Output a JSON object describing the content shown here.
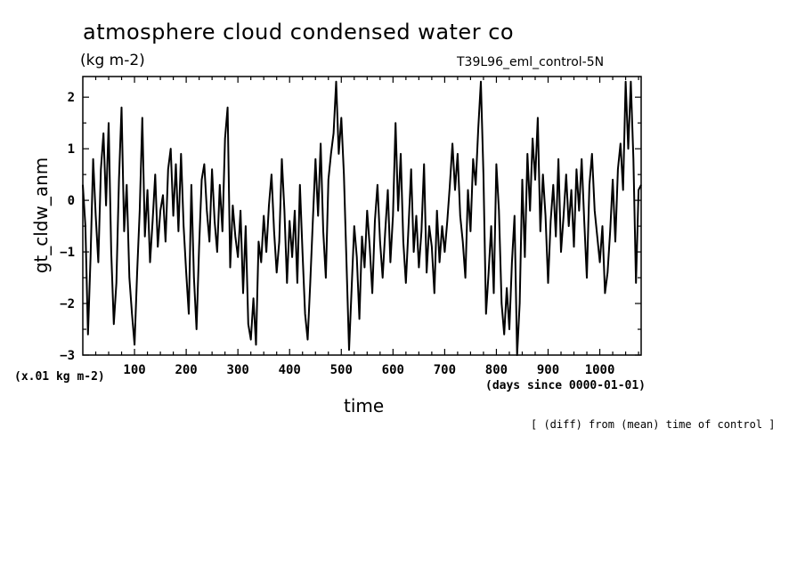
{
  "header": {
    "title": "atmosphere cloud condensed water co",
    "units": "(kg m-2)",
    "run": "T39L96_eml_control-5N"
  },
  "footer": {
    "yscale": "(x.01 kg m-2)",
    "xunits": "(days since 0000-01-01)",
    "xlabel": "time",
    "note": "[ (diff) from (mean) time of control ]"
  },
  "chart_data": {
    "type": "line",
    "title": "atmosphere cloud condensed water co",
    "xlabel": "time",
    "ylabel": "gt_cldw_anm",
    "xlim": [
      0,
      1080
    ],
    "ylim": [
      -3,
      2.4
    ],
    "x_ticks": [
      100,
      200,
      300,
      400,
      500,
      600,
      700,
      800,
      900,
      1000
    ],
    "y_ticks": [
      -3,
      -2,
      -1,
      0,
      1,
      2
    ],
    "grid": false,
    "series": [
      {
        "values": [
          [
            0,
            0.3
          ],
          [
            5,
            -0.5
          ],
          [
            10,
            -2.6
          ],
          [
            15,
            -1.1
          ],
          [
            20,
            0.8
          ],
          [
            25,
            -0.3
          ],
          [
            30,
            -1.2
          ],
          [
            35,
            0.6
          ],
          [
            40,
            1.3
          ],
          [
            45,
            -0.1
          ],
          [
            50,
            1.5
          ],
          [
            55,
            -1.0
          ],
          [
            60,
            -2.4
          ],
          [
            65,
            -1.6
          ],
          [
            70,
            0.4
          ],
          [
            75,
            1.8
          ],
          [
            80,
            -0.6
          ],
          [
            85,
            0.3
          ],
          [
            90,
            -1.5
          ],
          [
            95,
            -2.2
          ],
          [
            100,
            -2.8
          ],
          [
            105,
            -1.4
          ],
          [
            110,
            -0.2
          ],
          [
            115,
            1.6
          ],
          [
            120,
            -0.7
          ],
          [
            125,
            0.2
          ],
          [
            130,
            -1.2
          ],
          [
            135,
            -0.4
          ],
          [
            140,
            0.5
          ],
          [
            145,
            -0.9
          ],
          [
            150,
            -0.2
          ],
          [
            155,
            0.1
          ],
          [
            160,
            -0.8
          ],
          [
            165,
            0.6
          ],
          [
            170,
            1.0
          ],
          [
            175,
            -0.3
          ],
          [
            180,
            0.7
          ],
          [
            185,
            -0.6
          ],
          [
            190,
            0.9
          ],
          [
            195,
            -0.5
          ],
          [
            200,
            -1.4
          ],
          [
            205,
            -2.2
          ],
          [
            210,
            0.3
          ],
          [
            215,
            -1.5
          ],
          [
            220,
            -2.5
          ],
          [
            225,
            -0.9
          ],
          [
            230,
            0.4
          ],
          [
            235,
            0.7
          ],
          [
            240,
            -0.2
          ],
          [
            245,
            -0.8
          ],
          [
            250,
            0.6
          ],
          [
            255,
            -0.4
          ],
          [
            260,
            -1.0
          ],
          [
            265,
            0.3
          ],
          [
            270,
            -0.6
          ],
          [
            275,
            1.2
          ],
          [
            280,
            1.8
          ],
          [
            285,
            -1.3
          ],
          [
            290,
            -0.1
          ],
          [
            295,
            -0.7
          ],
          [
            300,
            -1.1
          ],
          [
            305,
            -0.2
          ],
          [
            310,
            -1.8
          ],
          [
            315,
            -0.5
          ],
          [
            320,
            -2.4
          ],
          [
            325,
            -2.7
          ],
          [
            330,
            -1.9
          ],
          [
            335,
            -2.8
          ],
          [
            340,
            -0.8
          ],
          [
            345,
            -1.2
          ],
          [
            350,
            -0.3
          ],
          [
            355,
            -1.0
          ],
          [
            360,
            -0.1
          ],
          [
            365,
            0.5
          ],
          [
            370,
            -0.6
          ],
          [
            375,
            -1.4
          ],
          [
            380,
            -0.8
          ],
          [
            385,
            0.8
          ],
          [
            390,
            -0.2
          ],
          [
            395,
            -1.6
          ],
          [
            400,
            -0.4
          ],
          [
            405,
            -1.1
          ],
          [
            410,
            -0.2
          ],
          [
            415,
            -1.6
          ],
          [
            420,
            0.3
          ],
          [
            425,
            -1.0
          ],
          [
            430,
            -2.2
          ],
          [
            435,
            -2.7
          ],
          [
            440,
            -1.6
          ],
          [
            445,
            -0.4
          ],
          [
            450,
            0.8
          ],
          [
            455,
            -0.3
          ],
          [
            460,
            1.1
          ],
          [
            465,
            -0.6
          ],
          [
            470,
            -1.5
          ],
          [
            475,
            0.4
          ],
          [
            480,
            0.9
          ],
          [
            485,
            1.3
          ],
          [
            490,
            2.3
          ],
          [
            495,
            0.9
          ],
          [
            500,
            1.6
          ],
          [
            505,
            0.5
          ],
          [
            510,
            -1.2
          ],
          [
            515,
            -2.9
          ],
          [
            520,
            -1.7
          ],
          [
            525,
            -0.5
          ],
          [
            530,
            -1.1
          ],
          [
            535,
            -2.3
          ],
          [
            540,
            -0.7
          ],
          [
            545,
            -1.3
          ],
          [
            550,
            -0.2
          ],
          [
            555,
            -0.9
          ],
          [
            560,
            -1.8
          ],
          [
            565,
            -0.4
          ],
          [
            570,
            0.3
          ],
          [
            575,
            -0.8
          ],
          [
            580,
            -1.5
          ],
          [
            585,
            -0.6
          ],
          [
            590,
            0.2
          ],
          [
            595,
            -1.2
          ],
          [
            600,
            -0.3
          ],
          [
            605,
            1.5
          ],
          [
            610,
            -0.2
          ],
          [
            615,
            0.9
          ],
          [
            620,
            -0.8
          ],
          [
            625,
            -1.6
          ],
          [
            630,
            -0.5
          ],
          [
            635,
            0.6
          ],
          [
            640,
            -1.0
          ],
          [
            645,
            -0.3
          ],
          [
            650,
            -1.3
          ],
          [
            655,
            -0.6
          ],
          [
            660,
            0.7
          ],
          [
            665,
            -1.4
          ],
          [
            670,
            -0.5
          ],
          [
            675,
            -0.9
          ],
          [
            680,
            -1.8
          ],
          [
            685,
            -0.2
          ],
          [
            690,
            -1.2
          ],
          [
            695,
            -0.5
          ],
          [
            700,
            -1.0
          ],
          [
            705,
            -0.4
          ],
          [
            710,
            0.3
          ],
          [
            715,
            1.1
          ],
          [
            720,
            0.2
          ],
          [
            725,
            0.9
          ],
          [
            730,
            -0.3
          ],
          [
            735,
            -0.8
          ],
          [
            740,
            -1.5
          ],
          [
            745,
            0.2
          ],
          [
            750,
            -0.6
          ],
          [
            755,
            0.8
          ],
          [
            760,
            0.3
          ],
          [
            765,
            1.4
          ],
          [
            770,
            2.3
          ],
          [
            775,
            0.5
          ],
          [
            780,
            -2.2
          ],
          [
            785,
            -1.4
          ],
          [
            790,
            -0.5
          ],
          [
            795,
            -1.8
          ],
          [
            800,
            0.7
          ],
          [
            805,
            -0.2
          ],
          [
            810,
            -2.0
          ],
          [
            815,
            -2.6
          ],
          [
            820,
            -1.7
          ],
          [
            825,
            -2.5
          ],
          [
            830,
            -1.2
          ],
          [
            835,
            -0.3
          ],
          [
            840,
            -3.0
          ],
          [
            845,
            -2.0
          ],
          [
            850,
            0.4
          ],
          [
            855,
            -1.1
          ],
          [
            860,
            0.9
          ],
          [
            865,
            -0.2
          ],
          [
            870,
            1.2
          ],
          [
            875,
            0.4
          ],
          [
            880,
            1.6
          ],
          [
            885,
            -0.6
          ],
          [
            890,
            0.5
          ],
          [
            895,
            -0.3
          ],
          [
            900,
            -1.6
          ],
          [
            905,
            -0.4
          ],
          [
            910,
            0.3
          ],
          [
            915,
            -0.7
          ],
          [
            920,
            0.8
          ],
          [
            925,
            -1.0
          ],
          [
            930,
            -0.3
          ],
          [
            935,
            0.5
          ],
          [
            940,
            -0.5
          ],
          [
            945,
            0.2
          ],
          [
            950,
            -0.9
          ],
          [
            955,
            0.6
          ],
          [
            960,
            -0.2
          ],
          [
            965,
            0.8
          ],
          [
            970,
            -0.4
          ],
          [
            975,
            -1.5
          ],
          [
            980,
            0.3
          ],
          [
            985,
            0.9
          ],
          [
            990,
            -0.2
          ],
          [
            995,
            -0.7
          ],
          [
            1000,
            -1.2
          ],
          [
            1005,
            -0.5
          ],
          [
            1010,
            -1.8
          ],
          [
            1015,
            -1.4
          ],
          [
            1020,
            -0.6
          ],
          [
            1025,
            0.4
          ],
          [
            1030,
            -0.8
          ],
          [
            1035,
            0.6
          ],
          [
            1040,
            1.1
          ],
          [
            1045,
            0.2
          ],
          [
            1050,
            2.3
          ],
          [
            1055,
            1.0
          ],
          [
            1060,
            2.3
          ],
          [
            1065,
            0.8
          ],
          [
            1070,
            -1.6
          ],
          [
            1075,
            0.2
          ],
          [
            1080,
            0.3
          ]
        ]
      }
    ]
  }
}
